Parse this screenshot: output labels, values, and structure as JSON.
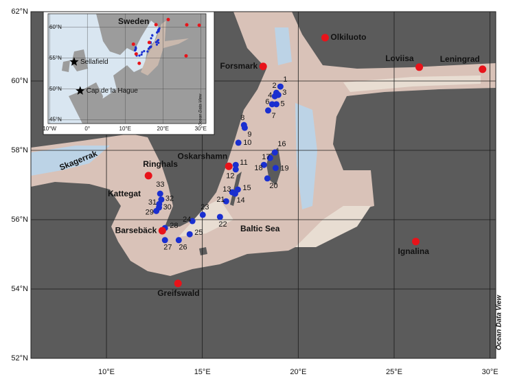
{
  "map": {
    "xlim": [
      6.06,
      30.3
    ],
    "ylim": [
      52,
      62
    ],
    "grid": true,
    "lon_ticks": [
      {
        "value": 10,
        "label": "10°E"
      },
      {
        "value": 15,
        "label": "15°E"
      },
      {
        "value": 20,
        "label": "20°E"
      },
      {
        "value": 25,
        "label": "25°E"
      },
      {
        "value": 30,
        "label": "30°E"
      }
    ],
    "lat_ticks": [
      {
        "value": 52,
        "label": "52°N"
      },
      {
        "value": 54,
        "label": "54°N"
      },
      {
        "value": 56,
        "label": "56°N"
      },
      {
        "value": 58,
        "label": "58°N"
      },
      {
        "value": 60,
        "label": "60°N"
      },
      {
        "value": 62,
        "label": "62°N"
      }
    ],
    "regions": {
      "skagerrak": "Skagerrak",
      "kattegat": "Kattegat",
      "baltic_sea": "Baltic Sea"
    },
    "watermark": "Ocean Data View",
    "sites": [
      {
        "name": "Olkiluoto",
        "lon": 21.4,
        "lat": 61.25
      },
      {
        "name": "Forsmark",
        "lon": 18.17,
        "lat": 60.42
      },
      {
        "name": "Loviisa",
        "lon": 26.31,
        "lat": 60.4
      },
      {
        "name": "Leningrad",
        "lon": 29.61,
        "lat": 60.34
      },
      {
        "name": "Oskarshamn",
        "lon": 16.38,
        "lat": 57.54
      },
      {
        "name": "Ringhals",
        "lon": 12.19,
        "lat": 57.27
      },
      {
        "name": "Barsebäck",
        "lon": 12.91,
        "lat": 55.68
      },
      {
        "name": "Ignalina",
        "lon": 26.13,
        "lat": 55.37
      },
      {
        "name": "Greifswald",
        "lon": 13.73,
        "lat": 54.16
      }
    ],
    "stations": [
      {
        "label": "1",
        "lon": 19.07,
        "lat": 59.84
      },
      {
        "label": "2",
        "lon": 18.86,
        "lat": 59.66
      },
      {
        "label": "3",
        "lon": 18.96,
        "lat": 59.6
      },
      {
        "label": "4",
        "lon": 18.78,
        "lat": 59.56
      },
      {
        "label": "5",
        "lon": 18.86,
        "lat": 59.33
      },
      {
        "label": "6",
        "lon": 18.64,
        "lat": 59.33
      },
      {
        "label": "7",
        "lon": 18.43,
        "lat": 59.15
      },
      {
        "label": "8",
        "lon": 17.17,
        "lat": 58.73
      },
      {
        "label": "9",
        "lon": 17.21,
        "lat": 58.65
      },
      {
        "label": "10",
        "lon": 16.88,
        "lat": 58.22
      },
      {
        "label": "11",
        "lon": 16.74,
        "lat": 57.58
      },
      {
        "label": "12",
        "lon": 16.74,
        "lat": 57.45
      },
      {
        "label": "13",
        "lon": 16.56,
        "lat": 56.79
      },
      {
        "label": "14",
        "lon": 16.71,
        "lat": 56.75
      },
      {
        "label": "15",
        "lon": 16.85,
        "lat": 56.87
      },
      {
        "label": "16",
        "lon": 18.78,
        "lat": 57.94
      },
      {
        "label": "17",
        "lon": 18.53,
        "lat": 57.78
      },
      {
        "label": "18",
        "lon": 18.21,
        "lat": 57.58
      },
      {
        "label": "19",
        "lon": 18.82,
        "lat": 57.49
      },
      {
        "label": "20",
        "lon": 18.39,
        "lat": 57.19
      },
      {
        "label": "21",
        "lon": 16.24,
        "lat": 56.53
      },
      {
        "label": "22",
        "lon": 15.92,
        "lat": 56.08
      },
      {
        "label": "23",
        "lon": 15.02,
        "lat": 56.14
      },
      {
        "label": "24",
        "lon": 14.48,
        "lat": 55.96
      },
      {
        "label": "25",
        "lon": 14.34,
        "lat": 55.58
      },
      {
        "label": "26",
        "lon": 13.77,
        "lat": 55.41
      },
      {
        "label": "27",
        "lon": 13.05,
        "lat": 55.41
      },
      {
        "label": "28",
        "lon": 13.05,
        "lat": 55.76
      },
      {
        "label": "29",
        "lon": 12.6,
        "lat": 56.25
      },
      {
        "label": "30",
        "lon": 12.74,
        "lat": 56.35
      },
      {
        "label": "31",
        "lon": 12.75,
        "lat": 56.45
      },
      {
        "label": "32",
        "lon": 12.86,
        "lat": 56.58
      },
      {
        "label": "33",
        "lon": 12.8,
        "lat": 56.75
      }
    ],
    "inset": {
      "label": "Sweden",
      "xlim": [
        -10.4,
        31.4
      ],
      "ylim": [
        44.4,
        62.2
      ],
      "lon_ticks": [
        {
          "value": -10,
          "label": "10°W"
        },
        {
          "value": 0,
          "label": "0°"
        },
        {
          "value": 10,
          "label": "10°E"
        },
        {
          "value": 20,
          "label": "20°E"
        },
        {
          "value": 30,
          "label": "30°E"
        }
      ],
      "lat_ticks": [
        {
          "value": 45,
          "label": "45°N"
        },
        {
          "value": 50,
          "label": "50°N"
        },
        {
          "value": 55,
          "label": "55°N"
        },
        {
          "value": 60,
          "label": "60°N"
        }
      ],
      "sources": [
        {
          "name": "Sellafield",
          "lon": -3.5,
          "lat": 54.4
        },
        {
          "name": "Cap de la Hague",
          "lon": -1.9,
          "lat": 49.7
        }
      ],
      "watermark": "Ocean Data View"
    }
  }
}
